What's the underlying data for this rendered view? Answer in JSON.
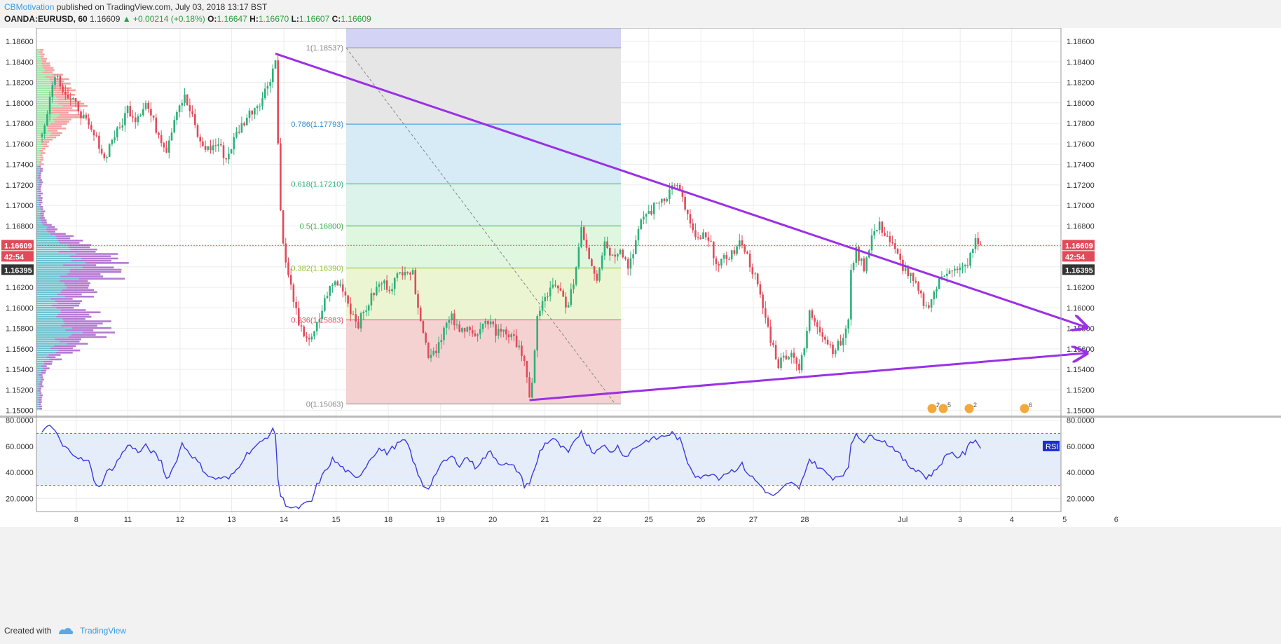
{
  "header": {
    "author": "CBMotivation",
    "published": "published on TradingView.com, July 03, 2018 13:17 BST",
    "symbol": "OANDA:EURUSD, 60",
    "last": "1.16609",
    "change": "+0.00214 (+0.18%)",
    "open_label": "O:",
    "open": "1.16647",
    "high_label": "H:",
    "high": "1.16670",
    "low_label": "L:",
    "low": "1.16607",
    "close_label": "C:",
    "close": "1.16609"
  },
  "footer": {
    "created_with": "Created with",
    "brand": "TradingView"
  },
  "colors": {
    "up": "#2eb07a",
    "down": "#e24a5a",
    "trendline": "#9b30e6",
    "rsi_line": "#3a3adf",
    "rsi_fill": "#e6edfa",
    "grid": "#ececec",
    "price_tag": "#e24a5a",
    "dark_tag": "#333333",
    "fib_0": "#f4d2d2",
    "fib_0236": "#ecf5d2",
    "fib_0382": "#dff6df",
    "fib_05": "#dbf3ea",
    "fib_0618": "#d6ebf5",
    "fib_0786": "#e6e6e6",
    "fib_1": "#d3d3f5"
  },
  "chart_data": [
    {
      "type": "candlestick",
      "name": "EURUSD price",
      "ylim": [
        1.1495,
        1.1873
      ],
      "y_ticks": [
        "1.15000",
        "1.15200",
        "1.15400",
        "1.15600",
        "1.15800",
        "1.16000",
        "1.16200",
        "1.16400",
        "1.16600",
        "1.16800",
        "1.17000",
        "1.17200",
        "1.17400",
        "1.17600",
        "1.17800",
        "1.18000",
        "1.18200",
        "1.18400",
        "1.18600"
      ],
      "x_ticks": [
        "8",
        "11",
        "12",
        "13",
        "14",
        "15",
        "18",
        "19",
        "20",
        "21",
        "22",
        "25",
        "26",
        "27",
        "28",
        "Jul",
        "3",
        "4",
        "5",
        "6"
      ],
      "price_label": {
        "value": "1.16609",
        "countdown": "42:54"
      },
      "secondary_label": "1.16395",
      "waypoints": [
        [
          0,
          1.177
        ],
        [
          5,
          1.183
        ],
        [
          10,
          1.1805
        ],
        [
          14,
          1.1795
        ],
        [
          18,
          1.1775
        ],
        [
          22,
          1.176
        ],
        [
          24,
          1.1745
        ],
        [
          27,
          1.1765
        ],
        [
          30,
          1.1775
        ],
        [
          33,
          1.1795
        ],
        [
          36,
          1.1785
        ],
        [
          40,
          1.18
        ],
        [
          44,
          1.1775
        ],
        [
          48,
          1.1755
        ],
        [
          52,
          1.1795
        ],
        [
          55,
          1.1805
        ],
        [
          58,
          1.1785
        ],
        [
          61,
          1.176
        ],
        [
          64,
          1.1755
        ],
        [
          68,
          1.176
        ],
        [
          71,
          1.1745
        ],
        [
          75,
          1.177
        ],
        [
          80,
          1.179
        ],
        [
          85,
          1.1805
        ],
        [
          88,
          1.1825
        ],
        [
          90,
          1.1842
        ],
        [
          91,
          1.176
        ],
        [
          92,
          1.17
        ],
        [
          93,
          1.166
        ],
        [
          95,
          1.163
        ],
        [
          97,
          1.161
        ],
        [
          99,
          1.158
        ],
        [
          101,
          1.1575
        ],
        [
          104,
          1.1568
        ],
        [
          107,
          1.159
        ],
        [
          110,
          1.1615
        ],
        [
          113,
          1.1625
        ],
        [
          116,
          1.162
        ],
        [
          119,
          1.1598
        ],
        [
          122,
          1.1585
        ],
        [
          125,
          1.16
        ],
        [
          128,
          1.1615
        ],
        [
          131,
          1.1625
        ],
        [
          134,
          1.162
        ],
        [
          137,
          1.163
        ],
        [
          140,
          1.164
        ],
        [
          143,
          1.1632
        ],
        [
          145,
          1.1605
        ],
        [
          147,
          1.1575
        ],
        [
          149,
          1.1555
        ],
        [
          152,
          1.156
        ],
        [
          155,
          1.158
        ],
        [
          158,
          1.159
        ],
        [
          161,
          1.1575
        ],
        [
          164,
          1.1585
        ],
        [
          167,
          1.157
        ],
        [
          170,
          1.158
        ],
        [
          173,
          1.159
        ],
        [
          175,
          1.1575
        ],
        [
          178,
          1.158
        ],
        [
          181,
          1.157
        ],
        [
          184,
          1.1565
        ],
        [
          186,
          1.1545
        ],
        [
          188,
          1.151
        ],
        [
          189,
          1.153
        ],
        [
          190,
          1.156
        ],
        [
          191,
          1.159
        ],
        [
          194,
          1.161
        ],
        [
          197,
          1.162
        ],
        [
          200,
          1.1615
        ],
        [
          203,
          1.16
        ],
        [
          206,
          1.164
        ],
        [
          208,
          1.168
        ],
        [
          211,
          1.165
        ],
        [
          214,
          1.163
        ],
        [
          217,
          1.1665
        ],
        [
          220,
          1.165
        ],
        [
          223,
          1.166
        ],
        [
          226,
          1.164
        ],
        [
          229,
          1.1665
        ],
        [
          232,
          1.169
        ],
        [
          235,
          1.1695
        ],
        [
          238,
          1.1705
        ],
        [
          241,
          1.171
        ],
        [
          244,
          1.1722
        ],
        [
          246,
          1.1712
        ],
        [
          249,
          1.169
        ],
        [
          252,
          1.1665
        ],
        [
          255,
          1.167
        ],
        [
          258,
          1.166
        ],
        [
          261,
          1.164
        ],
        [
          264,
          1.165
        ],
        [
          267,
          1.1655
        ],
        [
          270,
          1.1665
        ],
        [
          272,
          1.165
        ],
        [
          275,
          1.163
        ],
        [
          278,
          1.16
        ],
        [
          281,
          1.157
        ],
        [
          284,
          1.1545
        ],
        [
          287,
          1.1555
        ],
        [
          290,
          1.1555
        ],
        [
          292,
          1.154
        ],
        [
          294,
          1.156
        ],
        [
          296,
          1.1595
        ],
        [
          299,
          1.1585
        ],
        [
          302,
          1.157
        ],
        [
          305,
          1.156
        ],
        [
          308,
          1.1565
        ],
        [
          311,
          1.1585
        ],
        [
          312,
          1.164
        ],
        [
          314,
          1.1655
        ],
        [
          317,
          1.164
        ],
        [
          320,
          1.167
        ],
        [
          323,
          1.168
        ],
        [
          326,
          1.167
        ],
        [
          329,
          1.1655
        ],
        [
          332,
          1.164
        ],
        [
          335,
          1.163
        ],
        [
          338,
          1.1615
        ],
        [
          341,
          1.16
        ],
        [
          344,
          1.1615
        ],
        [
          347,
          1.163
        ],
        [
          350,
          1.164
        ],
        [
          353,
          1.1635
        ],
        [
          356,
          1.164
        ],
        [
          358,
          1.165
        ],
        [
          360,
          1.1665
        ],
        [
          362,
          1.1661
        ]
      ],
      "fibonacci": {
        "from_date_tick": "14",
        "to_date_tick": "21",
        "levels": [
          {
            "label": "1(1.18537)",
            "value": 1.18537
          },
          {
            "label": "0.786(1.17793)",
            "value": 1.17793
          },
          {
            "label": "0.618(1.17210)",
            "value": 1.1721
          },
          {
            "label": "0.5(1.16800)",
            "value": 1.168
          },
          {
            "label": "0.382(1.16390)",
            "value": 1.1639
          },
          {
            "label": "0.236(1.15883)",
            "value": 1.15883
          },
          {
            "label": "0(1.15063)",
            "value": 1.15063
          }
        ]
      },
      "trendlines": [
        {
          "name": "upper",
          "from": [
            90,
            1.1848
          ],
          "to": [
            403,
            1.1581
          ]
        },
        {
          "name": "lower",
          "from": [
            188,
            1.151
          ],
          "to": [
            403,
            1.1556
          ]
        }
      ],
      "event_markers": [
        {
          "label": "2"
        },
        {
          "label": "5"
        },
        {
          "label": "2"
        },
        {
          "label": "6"
        }
      ]
    },
    {
      "type": "line",
      "name": "RSI",
      "label": "RSI",
      "ylim": [
        10,
        82
      ],
      "y_ticks": [
        "20.0000",
        "40.0000",
        "60.0000",
        "80.0000"
      ],
      "levels": [
        70,
        30
      ],
      "waypoints": [
        [
          0,
          70
        ],
        [
          3,
          76
        ],
        [
          5,
          72
        ],
        [
          8,
          60
        ],
        [
          12,
          55
        ],
        [
          15,
          50
        ],
        [
          18,
          48
        ],
        [
          20,
          35
        ],
        [
          22,
          28
        ],
        [
          25,
          40
        ],
        [
          28,
          45
        ],
        [
          31,
          55
        ],
        [
          34,
          62
        ],
        [
          37,
          55
        ],
        [
          40,
          60
        ],
        [
          43,
          55
        ],
        [
          46,
          48
        ],
        [
          48,
          35
        ],
        [
          51,
          45
        ],
        [
          54,
          62
        ],
        [
          57,
          55
        ],
        [
          60,
          48
        ],
        [
          63,
          40
        ],
        [
          66,
          35
        ],
        [
          69,
          36
        ],
        [
          72,
          35
        ],
        [
          75,
          42
        ],
        [
          78,
          52
        ],
        [
          81,
          58
        ],
        [
          84,
          62
        ],
        [
          87,
          68
        ],
        [
          89,
          72
        ],
        [
          90,
          70
        ],
        [
          91,
          35
        ],
        [
          92,
          22
        ],
        [
          94,
          16
        ],
        [
          96,
          13
        ],
        [
          98,
          12
        ],
        [
          101,
          15
        ],
        [
          104,
          18
        ],
        [
          106,
          30
        ],
        [
          109,
          40
        ],
        [
          112,
          50
        ],
        [
          115,
          45
        ],
        [
          118,
          40
        ],
        [
          121,
          35
        ],
        [
          124,
          42
        ],
        [
          127,
          52
        ],
        [
          130,
          58
        ],
        [
          133,
          55
        ],
        [
          136,
          60
        ],
        [
          139,
          64
        ],
        [
          141,
          62
        ],
        [
          143,
          50
        ],
        [
          145,
          38
        ],
        [
          147,
          30
        ],
        [
          149,
          28
        ],
        [
          152,
          40
        ],
        [
          155,
          48
        ],
        [
          158,
          52
        ],
        [
          161,
          46
        ],
        [
          164,
          52
        ],
        [
          167,
          44
        ],
        [
          170,
          50
        ],
        [
          173,
          56
        ],
        [
          176,
          48
        ],
        [
          179,
          46
        ],
        [
          182,
          44
        ],
        [
          184,
          40
        ],
        [
          186,
          30
        ],
        [
          188,
          32
        ],
        [
          190,
          42
        ],
        [
          192,
          56
        ],
        [
          194,
          62
        ],
        [
          197,
          66
        ],
        [
          200,
          60
        ],
        [
          203,
          55
        ],
        [
          206,
          65
        ],
        [
          208,
          72
        ],
        [
          210,
          62
        ],
        [
          213,
          55
        ],
        [
          216,
          62
        ],
        [
          219,
          55
        ],
        [
          222,
          60
        ],
        [
          225,
          52
        ],
        [
          228,
          58
        ],
        [
          231,
          62
        ],
        [
          234,
          65
        ],
        [
          237,
          66
        ],
        [
          240,
          68
        ],
        [
          243,
          70
        ],
        [
          246,
          65
        ],
        [
          249,
          48
        ],
        [
          252,
          38
        ],
        [
          255,
          36
        ],
        [
          258,
          40
        ],
        [
          261,
          36
        ],
        [
          264,
          40
        ],
        [
          267,
          42
        ],
        [
          270,
          46
        ],
        [
          272,
          40
        ],
        [
          275,
          34
        ],
        [
          278,
          28
        ],
        [
          281,
          22
        ],
        [
          284,
          24
        ],
        [
          287,
          30
        ],
        [
          290,
          32
        ],
        [
          292,
          26
        ],
        [
          294,
          40
        ],
        [
          296,
          50
        ],
        [
          299,
          45
        ],
        [
          302,
          40
        ],
        [
          305,
          36
        ],
        [
          308,
          38
        ],
        [
          311,
          42
        ],
        [
          312,
          62
        ],
        [
          314,
          70
        ],
        [
          317,
          64
        ],
        [
          320,
          68
        ],
        [
          323,
          66
        ],
        [
          326,
          62
        ],
        [
          329,
          58
        ],
        [
          332,
          50
        ],
        [
          335,
          44
        ],
        [
          338,
          42
        ],
        [
          341,
          36
        ],
        [
          344,
          40
        ],
        [
          347,
          48
        ],
        [
          350,
          56
        ],
        [
          353,
          52
        ],
        [
          356,
          55
        ],
        [
          358,
          62
        ],
        [
          360,
          66
        ],
        [
          362,
          58
        ]
      ]
    }
  ]
}
